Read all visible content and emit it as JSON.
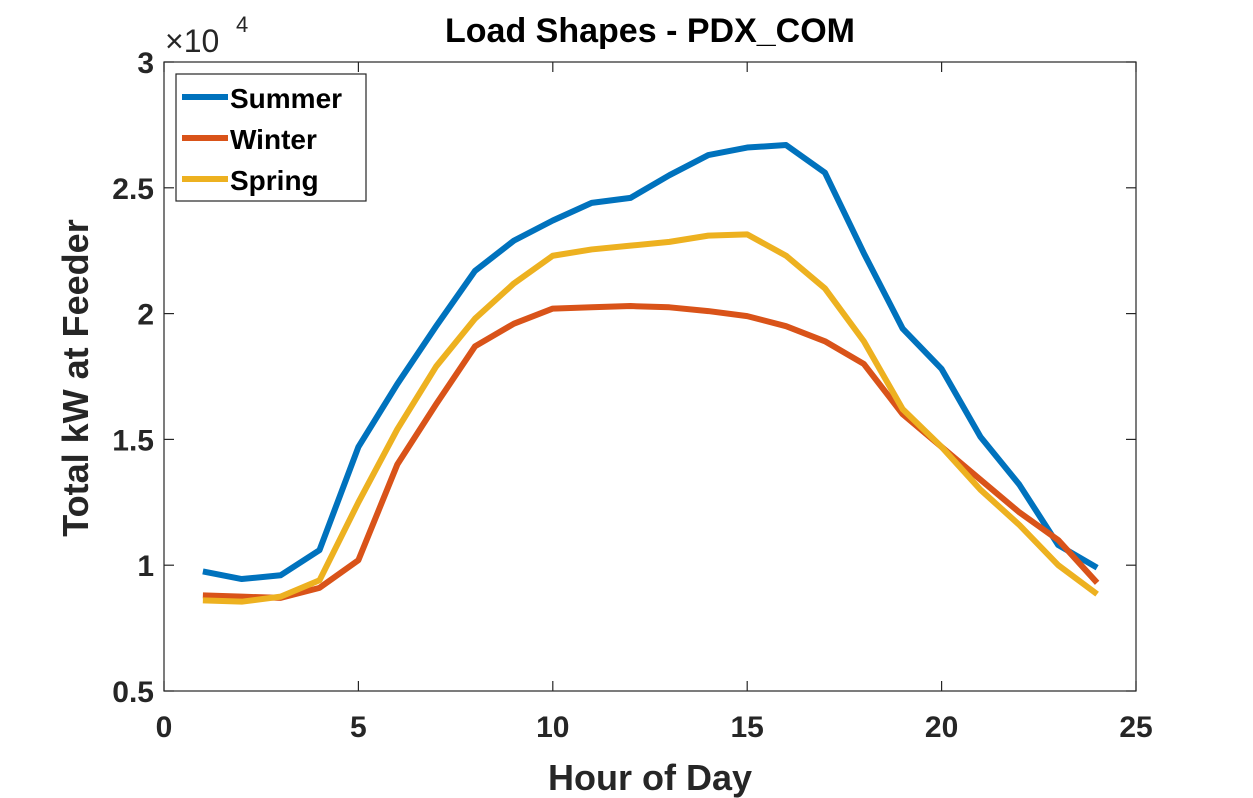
{
  "chart_data": {
    "type": "line",
    "title": "Load Shapes - PDX_COM",
    "xlabel": "Hour of Day",
    "ylabel": "Total kW at Feeder",
    "xlim": [
      0,
      25
    ],
    "ylim": [
      5000,
      30000
    ],
    "xticks": [
      0,
      5,
      10,
      15,
      20,
      25
    ],
    "yticks": [
      5000,
      10000,
      15000,
      20000,
      25000,
      30000
    ],
    "xtick_labels": [
      "0",
      "5",
      "10",
      "15",
      "20",
      "25"
    ],
    "ytick_labels": [
      "0.5",
      "1",
      "1.5",
      "2",
      "2.5",
      "3"
    ],
    "y_exponent": {
      "times": "×10",
      "power": "4"
    },
    "grid": false,
    "legend_position": "top-left",
    "x": [
      1,
      2,
      3,
      4,
      5,
      6,
      7,
      8,
      9,
      10,
      11,
      12,
      13,
      14,
      15,
      16,
      17,
      18,
      19,
      20,
      21,
      22,
      23,
      24
    ],
    "series": [
      {
        "name": "Summer",
        "color": "#0072BD",
        "values": [
          9750,
          9450,
          9600,
          10600,
          14700,
          17200,
          19500,
          21700,
          22900,
          23700,
          24400,
          24600,
          25500,
          26300,
          26600,
          26700,
          25600,
          22400,
          19400,
          17800,
          15100,
          13200,
          10800,
          9900
        ]
      },
      {
        "name": "Winter",
        "color": "#D95319",
        "values": [
          8800,
          8750,
          8700,
          9100,
          10200,
          14000,
          16400,
          18700,
          19600,
          20200,
          20250,
          20300,
          20250,
          20100,
          19900,
          19500,
          18900,
          18000,
          16000,
          14700,
          13400,
          12100,
          11000,
          9300
        ]
      },
      {
        "name": "Spring",
        "color": "#EDB120",
        "values": [
          8600,
          8550,
          8750,
          9400,
          12500,
          15400,
          17900,
          19800,
          21200,
          22300,
          22550,
          22700,
          22850,
          23100,
          23150,
          22300,
          21000,
          18900,
          16200,
          14700,
          13000,
          11600,
          10000,
          8850
        ]
      }
    ]
  }
}
